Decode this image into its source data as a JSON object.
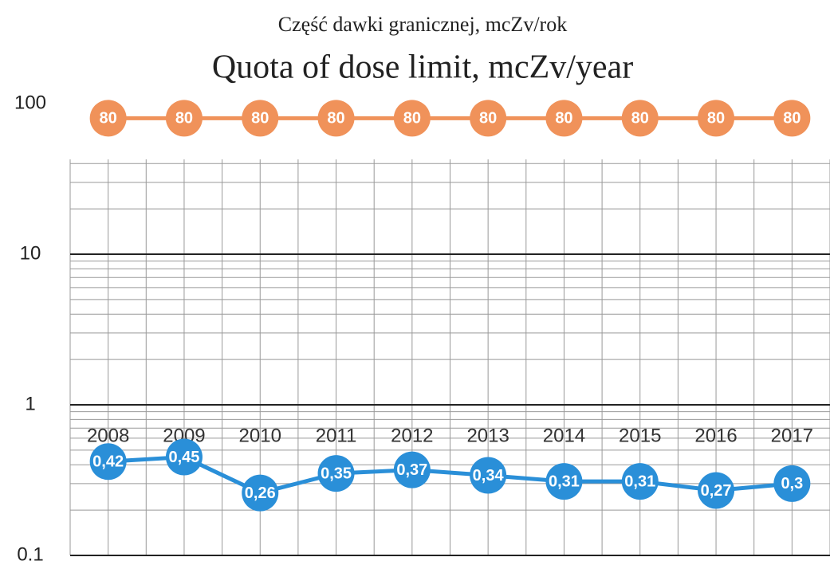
{
  "chart_data": {
    "type": "line",
    "subtitle": "Część dawki granicznej, mcZv/rok",
    "title": "Quota of dose limit, mcZv/year",
    "categories": [
      "2008",
      "2009",
      "2010",
      "2011",
      "2012",
      "2013",
      "2014",
      "2015",
      "2016",
      "2017"
    ],
    "series": [
      {
        "color": "#f0925a",
        "values": [
          80,
          80,
          80,
          80,
          80,
          80,
          80,
          80,
          80,
          80
        ]
      },
      {
        "color": "#2a8fd8",
        "values": [
          0.42,
          0.45,
          0.26,
          0.35,
          0.37,
          0.34,
          0.31,
          0.31,
          0.27,
          0.3
        ],
        "value_labels": [
          "0,42",
          "0,45",
          "0,26",
          "0,35",
          "0,37",
          "0,34",
          "0,31",
          "0,31",
          "0,27",
          "0,3"
        ]
      }
    ],
    "ylim": [
      0.1,
      100
    ],
    "yticks": [
      100,
      10,
      1,
      0.1
    ],
    "log_scale": true,
    "grid": true
  }
}
